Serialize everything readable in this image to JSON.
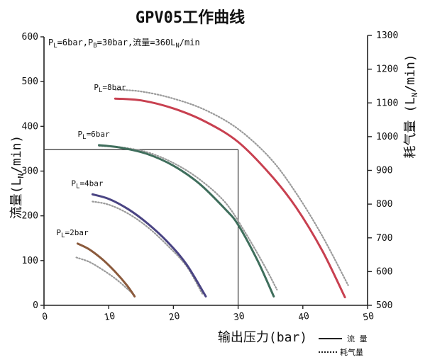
{
  "chart_data": {
    "type": "line",
    "title": "GPV05工作曲线",
    "params": {
      "pl_label": "P",
      "pl_sub": "L",
      "pl_value": "=6bar,",
      "pb_label": "P",
      "pb_sub": "B",
      "pb_value": "=30bar,",
      "flow_label": "流量=360L",
      "flow_sub": "N",
      "flow_unit": "/min"
    },
    "xlabel": "输出压力(bar)",
    "ylabel_left": {
      "main": "流量(L",
      "sub": "N",
      "tail": "/min)"
    },
    "ylabel_right": {
      "main": "耗气量 (L",
      "sub": "N",
      "tail": "/min)"
    },
    "xlim": [
      0,
      50
    ],
    "ylim_left": [
      0,
      600
    ],
    "ylim_right": [
      500,
      1300
    ],
    "x_ticks": [
      "0",
      "10",
      "20",
      "30",
      "40",
      "50"
    ],
    "y_left_ticks": [
      "0",
      "100",
      "200",
      "300",
      "400",
      "500",
      "600"
    ],
    "y_right_ticks": [
      "500",
      "600",
      "700",
      "800",
      "900",
      "1000",
      "1100",
      "1200",
      "1300"
    ],
    "reference_point": {
      "x": 30,
      "y": 348
    },
    "legend": {
      "flow": "流 量",
      "air": "耗气量",
      "placement": "bottom-right"
    },
    "series": [
      {
        "label_prefix": "P",
        "label_sub": "L",
        "label_value": "=2bar",
        "color": "#8b5a3c",
        "flow": [
          [
            5.2,
            138
          ],
          [
            7,
            125
          ],
          [
            9,
            103
          ],
          [
            11,
            75
          ],
          [
            12.8,
            45
          ],
          [
            14,
            20
          ]
        ],
        "air": [
          [
            5,
            107
          ],
          [
            7,
            97
          ],
          [
            9,
            80
          ],
          [
            11,
            60
          ],
          [
            12.8,
            38
          ],
          [
            14,
            22
          ]
        ]
      },
      {
        "label_prefix": "P",
        "label_sub": "L",
        "label_value": "=4bar",
        "color": "#4a4483",
        "flow": [
          [
            7.5,
            248
          ],
          [
            10,
            238
          ],
          [
            13,
            215
          ],
          [
            16,
            183
          ],
          [
            19,
            143
          ],
          [
            22,
            92
          ],
          [
            25,
            20
          ]
        ],
        "air": [
          [
            7.5,
            232
          ],
          [
            10,
            225
          ],
          [
            13,
            205
          ],
          [
            16,
            175
          ],
          [
            19,
            135
          ],
          [
            22,
            88
          ],
          [
            24.5,
            25
          ]
        ]
      },
      {
        "label_prefix": "P",
        "label_sub": "L",
        "label_value": "=6bar",
        "color": "#3f6e5c",
        "flow": [
          [
            8.5,
            358
          ],
          [
            12,
            352
          ],
          [
            16,
            338
          ],
          [
            20,
            312
          ],
          [
            24,
            272
          ],
          [
            28,
            215
          ],
          [
            30,
            180
          ],
          [
            33,
            100
          ],
          [
            35.5,
            20
          ]
        ],
        "air": [
          [
            8.5,
            356
          ],
          [
            12,
            353
          ],
          [
            16,
            342
          ],
          [
            20,
            318
          ],
          [
            24,
            282
          ],
          [
            28,
            230
          ],
          [
            31,
            165
          ],
          [
            34,
            90
          ],
          [
            36,
            35
          ]
        ]
      },
      {
        "label_prefix": "P",
        "label_sub": "L",
        "label_value": "=8bar",
        "color": "#c84050",
        "flow": [
          [
            11,
            462
          ],
          [
            15,
            458
          ],
          [
            20,
            440
          ],
          [
            25,
            410
          ],
          [
            30,
            365
          ],
          [
            35,
            292
          ],
          [
            39,
            218
          ],
          [
            43,
            122
          ],
          [
            46.5,
            18
          ]
        ],
        "air": [
          [
            11,
            482
          ],
          [
            15,
            478
          ],
          [
            20,
            462
          ],
          [
            25,
            436
          ],
          [
            30,
            394
          ],
          [
            35,
            328
          ],
          [
            39,
            250
          ],
          [
            43,
            155
          ],
          [
            47,
            45
          ]
        ]
      }
    ]
  }
}
